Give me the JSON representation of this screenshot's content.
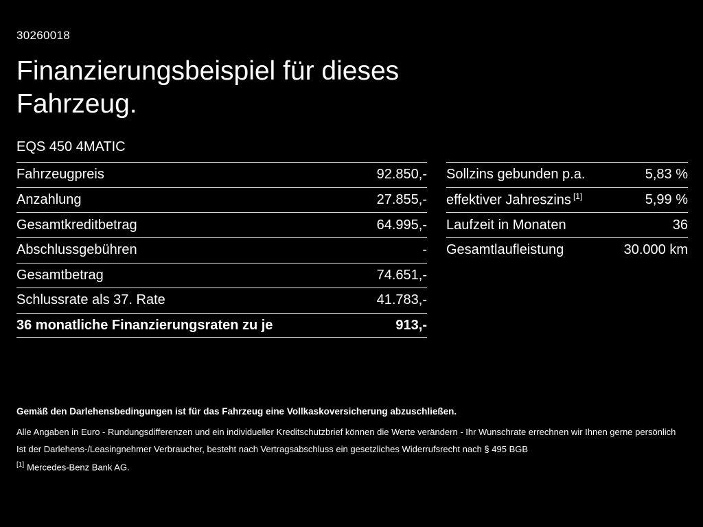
{
  "meta": {
    "document_number": "30260018"
  },
  "header": {
    "title": "Finanzierungsbeispiel für dieses Fahrzeug.",
    "model": "EQS 450 4MATIC"
  },
  "left_table": {
    "rows": [
      {
        "label": "Fahrzeugpreis",
        "value": "92.850,-"
      },
      {
        "label": "Anzahlung",
        "value": "27.855,-"
      },
      {
        "label": "Gesamtkreditbetrag",
        "value": "64.995,-"
      },
      {
        "label": "Abschlussgebühren",
        "value": "-"
      },
      {
        "label": "Gesamtbetrag",
        "value": "74.651,-"
      },
      {
        "label": "Schlussrate als 37. Rate",
        "value": "41.783,-"
      },
      {
        "label": "36 monatliche Finanzierungsraten zu je",
        "value": "913,-"
      }
    ]
  },
  "right_table": {
    "rows": [
      {
        "label": "Sollzins gebunden p.a.",
        "value": "5,83 %"
      },
      {
        "label": "effektiver Jahreszins",
        "sup": "[1]",
        "value": "5,99 %"
      },
      {
        "label": "Laufzeit in Monaten",
        "value": "36"
      },
      {
        "label": "Gesamtlaufleistung",
        "value": "30.000 km"
      }
    ]
  },
  "footer": {
    "insurance_note": "Gemäß den Darlehensbedingungen ist für das Fahrzeug eine Vollkaskoversicherung abzuschließen.",
    "disclaimer1": "Alle Angaben in Euro - Rundungsdifferenzen und ein individueller Kreditschutzbrief können die Werte verändern - Ihr Wunschrate errechnen wir Ihnen gerne persönlich",
    "disclaimer2": "Ist der Darlehens-/Leasingnehmer Verbraucher, besteht nach Vertragsabschluss ein gesetzliches Widerrufsrecht nach § 495 BGB",
    "footnote_marker": "[1]",
    "footnote_text": "Mercedes-Benz Bank AG."
  }
}
